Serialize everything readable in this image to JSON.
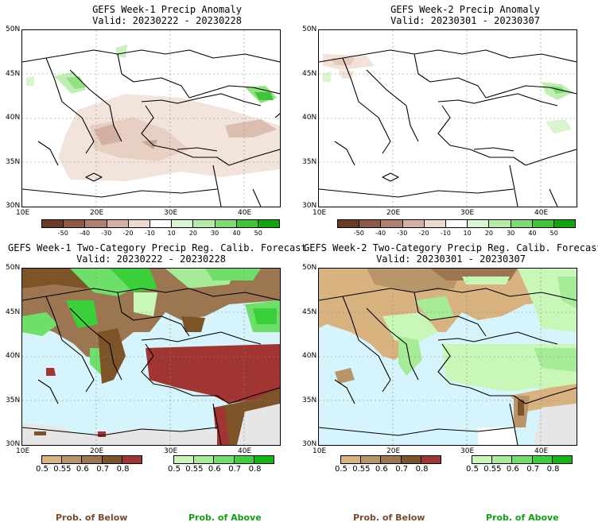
{
  "panels": [
    {
      "title": "GEFS Week-1 Precip Anomaly",
      "valid": "Valid: 20230222 - 20230228"
    },
    {
      "title": "GEFS Week-2 Precip Anomaly",
      "valid": "Valid: 20230301 - 20230307"
    },
    {
      "title": "GEFS Week-1 Two-Category Precip Reg. Calib. Forecast",
      "valid": "Valid: 20230222 - 20230228"
    },
    {
      "title": "GEFS Week-2 Two-Category Precip Reg. Calib. Forecast",
      "valid": "Valid: 20230301 - 20230307"
    }
  ],
  "axes": {
    "lat_labels": [
      "50N",
      "45N",
      "40N",
      "35N",
      "30N"
    ],
    "lon_labels": [
      "10E",
      "20E",
      "30E",
      "40E"
    ]
  },
  "anomaly_colorbar": {
    "labels": [
      "-50",
      "-40",
      "-30",
      "-20",
      "-10",
      "10",
      "20",
      "30",
      "40",
      "50"
    ],
    "colors": [
      "#6b3a22",
      "#8e5a44",
      "#b08070",
      "#d4b0a0",
      "#ecdad0",
      "#ffffff",
      "#d8f5d0",
      "#b2eca6",
      "#7fdc74",
      "#3fc43a",
      "#0ea50e"
    ]
  },
  "prob_below_colorbar": {
    "labels": [
      "0.5",
      "0.55",
      "0.6",
      "0.7",
      "0.8"
    ],
    "colors": [
      "#d9b37f",
      "#b8966a",
      "#9c7650",
      "#7c5428",
      "#a03532"
    ]
  },
  "prob_above_colorbar": {
    "labels": [
      "0.5",
      "0.55",
      "0.6",
      "0.7",
      "0.8"
    ],
    "colors": [
      "#c8f7b8",
      "#a6ec98",
      "#6ee06a",
      "#3ad03a",
      "#12b712"
    ]
  },
  "footer": {
    "below_label": "Prob. of Below",
    "above_label": "Prob. of Above",
    "below_color": "#7a4a2a",
    "above_color": "#12a012"
  },
  "map_colors": {
    "sea_week1": "#d6f4fb",
    "sea_week2": "#d6f4fb",
    "land_bg": "#ffffff",
    "dry_grey": "#e6e6e6"
  }
}
